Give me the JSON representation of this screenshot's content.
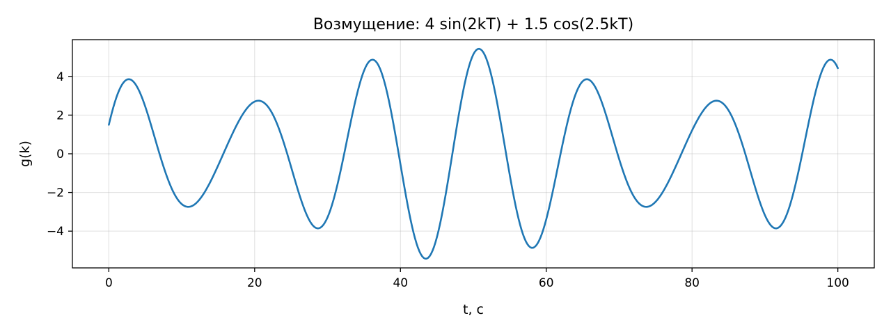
{
  "chart_data": {
    "type": "line",
    "title": "Возмущение: 4 sin(2kT) + 1.5 cos(2.5kT)",
    "xlabel": "t, c",
    "ylabel": "g(k)",
    "xlim": [
      -5,
      105
    ],
    "ylim": [
      -5.9,
      5.9
    ],
    "x_ticks": [
      0,
      20,
      40,
      60,
      80,
      100
    ],
    "x_tick_labels": [
      "0",
      "20",
      "40",
      "60",
      "80",
      "100"
    ],
    "y_ticks": [
      -4,
      -2,
      0,
      2,
      4
    ],
    "y_tick_labels": [
      "−4",
      "−2",
      "0",
      "2",
      "4"
    ],
    "grid": true,
    "series": [
      {
        "formula": "4 sin(2kT) + 1.5 cos(2.5kT)",
        "color": "#1f77b4",
        "x_start": 0,
        "x_end": 100,
        "sampling_step": 0.2,
        "sin_amplitude": 4,
        "sin_frequency": 0.4,
        "cos_amplitude": 1.5,
        "cos_frequency": 0.5
      }
    ]
  }
}
